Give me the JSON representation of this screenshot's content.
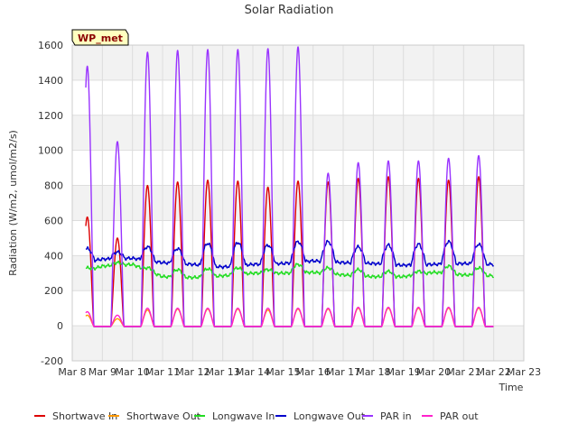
{
  "chart_data": {
    "type": "line",
    "title": "Solar Radiation",
    "xlabel": "Time",
    "ylabel": "Radiation (W/m2, umol/m2/s)",
    "badge": "WP_met",
    "xlim": [
      8,
      23
    ],
    "ylim": [
      -200,
      1600
    ],
    "xticks": [
      {
        "value": 8,
        "label": "Mar 8"
      },
      {
        "value": 9,
        "label": "Mar 9"
      },
      {
        "value": 10,
        "label": "Mar 10"
      },
      {
        "value": 11,
        "label": "Mar 11"
      },
      {
        "value": 12,
        "label": "Mar 12"
      },
      {
        "value": 13,
        "label": "Mar 13"
      },
      {
        "value": 14,
        "label": "Mar 14"
      },
      {
        "value": 15,
        "label": "Mar 15"
      },
      {
        "value": 16,
        "label": "Mar 16"
      },
      {
        "value": 17,
        "label": "Mar 17"
      },
      {
        "value": 18,
        "label": "Mar 18"
      },
      {
        "value": 19,
        "label": "Mar 19"
      },
      {
        "value": 20,
        "label": "Mar 20"
      },
      {
        "value": 21,
        "label": "Mar 21"
      },
      {
        "value": 22,
        "label": "Mar 22"
      },
      {
        "value": 23,
        "label": "Mar 23"
      }
    ],
    "yticks": [
      -200,
      0,
      200,
      400,
      600,
      800,
      1000,
      1200,
      1400,
      1600
    ],
    "grid": true,
    "legend_position": "bottom",
    "days": [
      8.5,
      9.5,
      10.5,
      11.5,
      12.5,
      13.5,
      14.5,
      15.5,
      16.5,
      17.5,
      18.5,
      19.5,
      20.5,
      21.5
    ],
    "series": [
      {
        "name": "Shortwave In",
        "color": "#dd0000",
        "night": -5,
        "peaks": [
          620,
          500,
          800,
          820,
          830,
          825,
          790,
          825,
          820,
          840,
          850,
          840,
          830,
          850
        ],
        "daylight_hours": 10.5
      },
      {
        "name": "Shortwave Out",
        "color": "#ff9900",
        "night": -3,
        "peaks": [
          60,
          40,
          90,
          95,
          95,
          95,
          90,
          95,
          95,
          100,
          100,
          100,
          100,
          100
        ],
        "daylight_hours": 10.5
      },
      {
        "name": "Longwave In",
        "color": "#22dd22",
        "night_levels": [
          290,
          340,
          350,
          280,
          275,
          285,
          300,
          300,
          305,
          290,
          280,
          280,
          305,
          290,
          285
        ],
        "day_levels": [
          330,
          360,
          330,
          320,
          325,
          330,
          320,
          350,
          330,
          320,
          310,
          310,
          340,
          330
        ]
      },
      {
        "name": "Longwave Out",
        "color": "#0000cc",
        "night_levels": [
          350,
          380,
          385,
          360,
          350,
          335,
          350,
          355,
          370,
          360,
          355,
          345,
          350,
          355,
          350
        ],
        "day_levels": [
          440,
          420,
          450,
          440,
          470,
          475,
          460,
          480,
          480,
          450,
          460,
          465,
          480,
          465
        ]
      },
      {
        "name": "PAR in",
        "color": "#9933ff",
        "night": -5,
        "peaks": [
          1480,
          1050,
          1560,
          1570,
          1575,
          1575,
          1580,
          1590,
          870,
          930,
          940,
          940,
          955,
          970
        ],
        "daylight_hours": 10.5
      },
      {
        "name": "PAR out",
        "color": "#ff22cc",
        "night": -3,
        "peaks": [
          80,
          60,
          100,
          100,
          100,
          100,
          100,
          100,
          100,
          105,
          105,
          105,
          105,
          105
        ],
        "daylight_hours": 10.5
      }
    ]
  }
}
